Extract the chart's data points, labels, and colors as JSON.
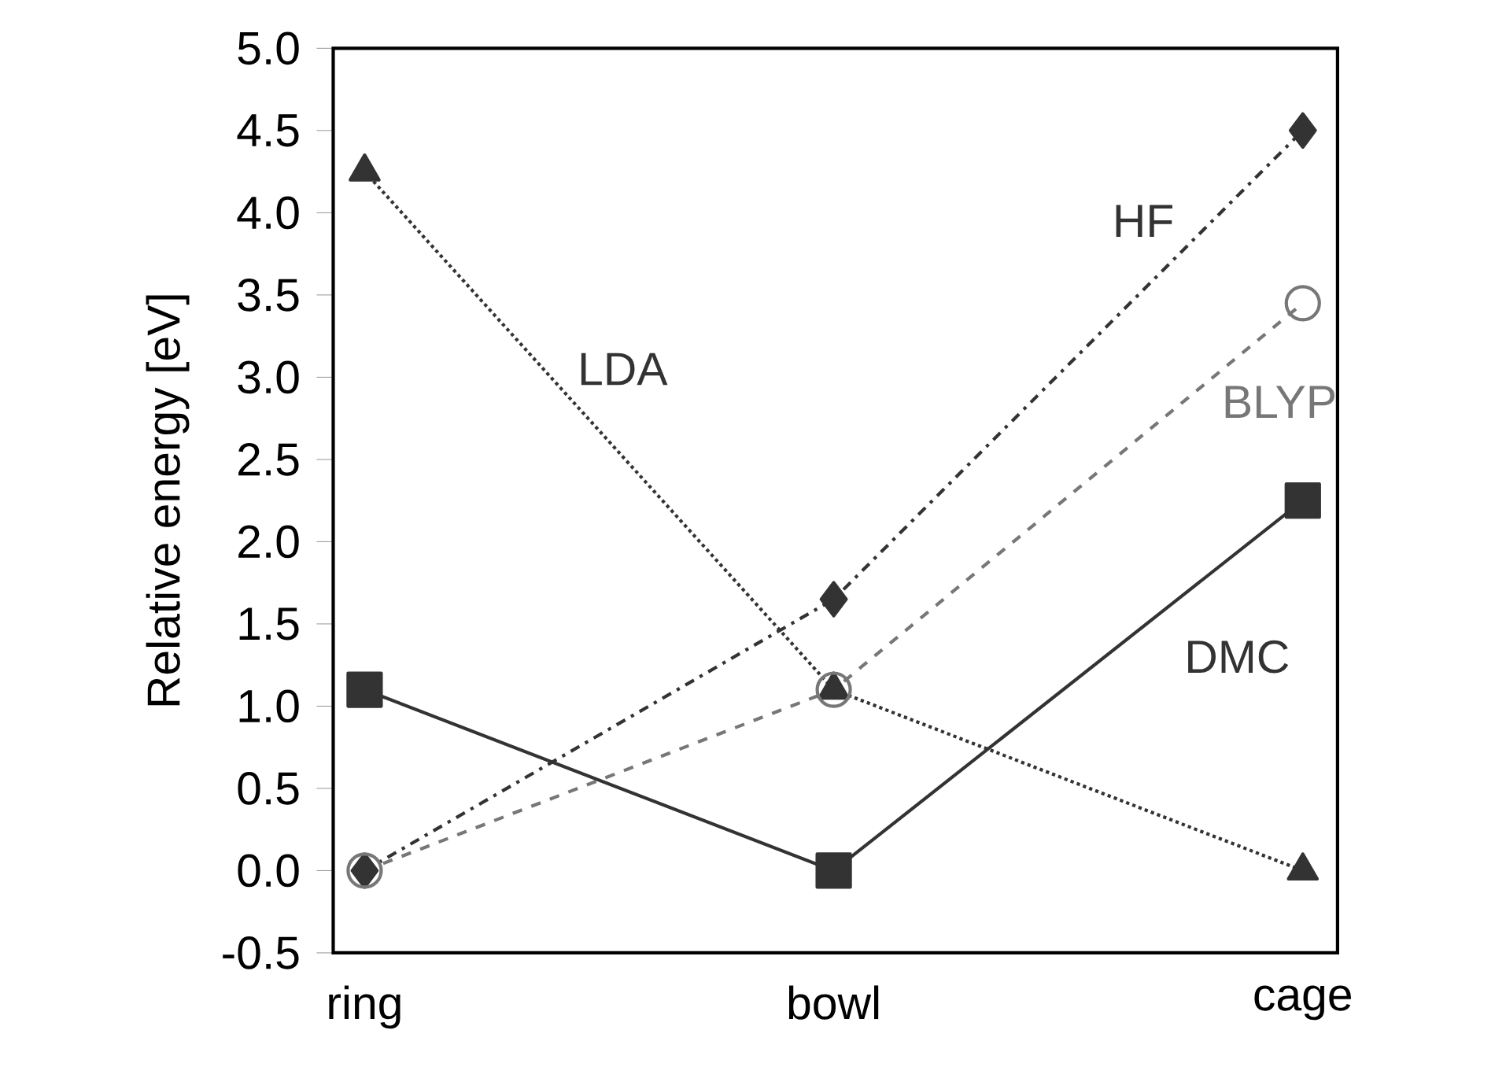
{
  "chart_data": {
    "type": "line",
    "ylabel": "Relative energy [eV]",
    "categories": [
      "ring",
      "bowl",
      "cage"
    ],
    "series": [
      {
        "name": "LDA",
        "color": "#333333",
        "values": [
          4.25,
          1.1,
          0.0
        ],
        "marker": "triangle",
        "line_style": "dotted"
      },
      {
        "name": "HF",
        "color": "#333333",
        "values": [
          0.0,
          1.65,
          4.5
        ],
        "marker": "diamond",
        "line_style": "dashdot"
      },
      {
        "name": "BLYP",
        "color": "#777777",
        "values": [
          0.0,
          1.1,
          3.45
        ],
        "marker": "circle",
        "line_style": "dashed"
      },
      {
        "name": "DMC",
        "color": "#333333",
        "values": [
          1.1,
          0.0,
          2.25
        ],
        "marker": "square",
        "line_style": "solid"
      }
    ],
    "ylim": [
      -0.5,
      5.0
    ],
    "yticks": [
      {
        "value": -0.5,
        "label": "-0.5"
      },
      {
        "value": 0,
        "label": "0.0"
      },
      {
        "value": 0.5,
        "label": "0.5"
      },
      {
        "value": 1,
        "label": "1.0"
      },
      {
        "value": 1.5,
        "label": "1.5"
      },
      {
        "value": 2,
        "label": "2.0"
      },
      {
        "value": 2.5,
        "label": "2.5"
      },
      {
        "value": 3,
        "label": "3.0"
      },
      {
        "value": 3.5,
        "label": "3.5"
      },
      {
        "value": 4,
        "label": "4.0"
      },
      {
        "value": 4.5,
        "label": "4.5"
      },
      {
        "value": 5,
        "label": "5.0"
      }
    ],
    "grid": false,
    "legend": false
  }
}
